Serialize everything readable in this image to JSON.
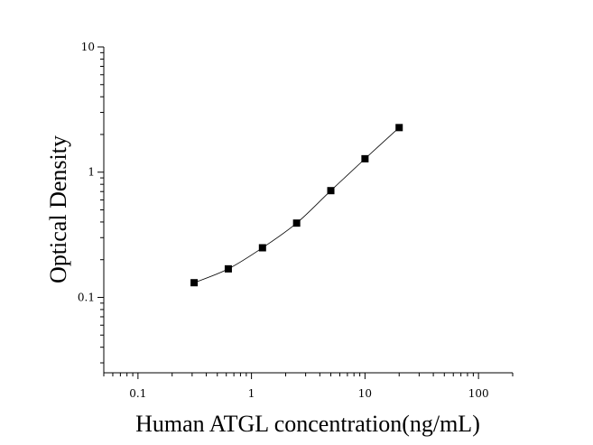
{
  "chart_data": {
    "type": "scatter",
    "title": "",
    "xlabel": "Human ATGL concentration(ng/mL)",
    "ylabel": "Optical Density",
    "xscale": "log",
    "yscale": "log",
    "xlim": [
      0.05,
      200
    ],
    "ylim": [
      0.025,
      10
    ],
    "grid": false,
    "legend": "none",
    "x_ticks": [
      "0.1",
      "1",
      "10",
      "100"
    ],
    "y_ticks": [
      "0.1",
      "1",
      "10"
    ],
    "series": [
      {
        "x": [
          0.3125,
          0.625,
          1.25,
          2.5,
          5,
          10,
          20
        ],
        "y": [
          0.131,
          0.169,
          0.249,
          0.392,
          0.712,
          1.28,
          2.27
        ],
        "marker": "square",
        "color": "#000000",
        "fit_line": true
      }
    ]
  }
}
